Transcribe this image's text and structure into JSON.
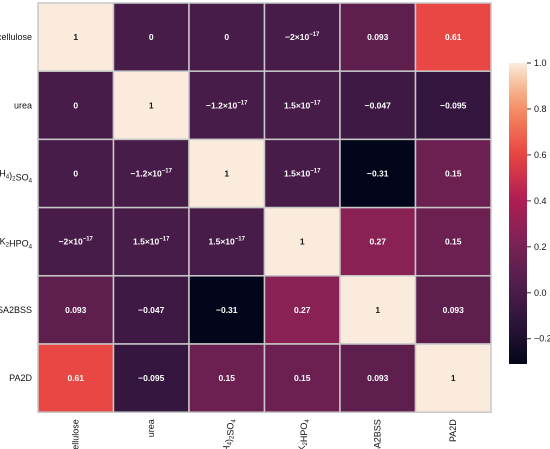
{
  "chart_data": {
    "type": "heatmap",
    "title": "",
    "xlabel": "",
    "ylabel": "",
    "rows": [
      {
        "label": "cellulose",
        "base": "cellulose",
        "sub": "",
        "suffix": ""
      },
      {
        "label": "urea",
        "base": "urea",
        "sub": "",
        "suffix": ""
      },
      {
        "label": "(NH4)2SO4",
        "base": "(NH",
        "sub": "4",
        "mid": ")",
        "sub2": "2",
        "suffix": "SO",
        "sub3": "4"
      },
      {
        "label": "K2HPO4",
        "base": "K",
        "sub": "2",
        "suffix": "HPO",
        "sub3": "4"
      },
      {
        "label": "SA2BSS",
        "base": "SA2BSS",
        "sub": "",
        "suffix": ""
      },
      {
        "label": "PA2D",
        "base": "PA2D",
        "sub": "",
        "suffix": ""
      }
    ],
    "columns": [
      {
        "label": "cellulose",
        "base": "cellulose",
        "sub": "",
        "suffix": ""
      },
      {
        "label": "urea",
        "base": "urea",
        "sub": "",
        "suffix": ""
      },
      {
        "label": "(NH4)2SO4",
        "base": "(NH",
        "sub": "4",
        "mid": ")",
        "sub2": "2",
        "suffix": "SO",
        "sub3": "4"
      },
      {
        "label": "K2HPO4",
        "base": "K",
        "sub": "2",
        "suffix": "HPO",
        "sub3": "4"
      },
      {
        "label": "SA2BSS",
        "base": "SA2BSS",
        "sub": "",
        "suffix": ""
      },
      {
        "label": "PA2D",
        "base": "PA2D",
        "sub": "",
        "suffix": ""
      }
    ],
    "values": [
      [
        1,
        0,
        0,
        -2e-17,
        0.093,
        0.61
      ],
      [
        0,
        1,
        -1.2e-17,
        1.5e-17,
        -0.047,
        -0.095
      ],
      [
        0,
        -1.2e-17,
        1,
        1.5e-17,
        -0.31,
        0.15
      ],
      [
        -2e-17,
        1.5e-17,
        1.5e-17,
        1,
        0.27,
        0.15
      ],
      [
        0.093,
        -0.047,
        -0.31,
        0.27,
        1,
        0.093
      ],
      [
        0.61,
        -0.095,
        0.15,
        0.15,
        0.093,
        1
      ]
    ],
    "cell_labels": [
      [
        {
          "m": "1"
        },
        {
          "m": "0"
        },
        {
          "m": "0"
        },
        {
          "m": "−2×10",
          "e": "−17"
        },
        {
          "m": "0.093"
        },
        {
          "m": "0.61"
        }
      ],
      [
        {
          "m": "0"
        },
        {
          "m": "1"
        },
        {
          "m": "−1.2×10",
          "e": "−17"
        },
        {
          "m": "1.5×10",
          "e": "−17"
        },
        {
          "m": "−0.047"
        },
        {
          "m": "−0.095"
        }
      ],
      [
        {
          "m": "0"
        },
        {
          "m": "−1.2×10",
          "e": "−17"
        },
        {
          "m": "1"
        },
        {
          "m": "1.5×10",
          "e": "−17"
        },
        {
          "m": "−0.31"
        },
        {
          "m": "0.15"
        }
      ],
      [
        {
          "m": "−2×10",
          "e": "−17"
        },
        {
          "m": "1.5×10",
          "e": "−17"
        },
        {
          "m": "1.5×10",
          "e": "−17"
        },
        {
          "m": "1"
        },
        {
          "m": "0.27"
        },
        {
          "m": "0.15"
        }
      ],
      [
        {
          "m": "0.093"
        },
        {
          "m": "−0.047"
        },
        {
          "m": "−0.31"
        },
        {
          "m": "0.27"
        },
        {
          "m": "1"
        },
        {
          "m": "0.093"
        }
      ],
      [
        {
          "m": "0.61"
        },
        {
          "m": "−0.095"
        },
        {
          "m": "0.15"
        },
        {
          "m": "0.15"
        },
        {
          "m": "0.093"
        },
        {
          "m": "1"
        }
      ]
    ],
    "colorbar": {
      "vmin": -0.31,
      "vmax": 1,
      "ticks": [
        {
          "value": 1.0,
          "label": "1.0"
        },
        {
          "value": 0.8,
          "label": "0.8"
        },
        {
          "value": 0.6,
          "label": "0.6"
        },
        {
          "value": 0.4,
          "label": "0.4"
        },
        {
          "value": 0.2,
          "label": "0.2"
        },
        {
          "value": 0.0,
          "label": "0.0"
        },
        {
          "value": -0.2,
          "label": "−0.2"
        }
      ],
      "colormap": "rocket"
    },
    "grid": true,
    "legend": "right"
  }
}
